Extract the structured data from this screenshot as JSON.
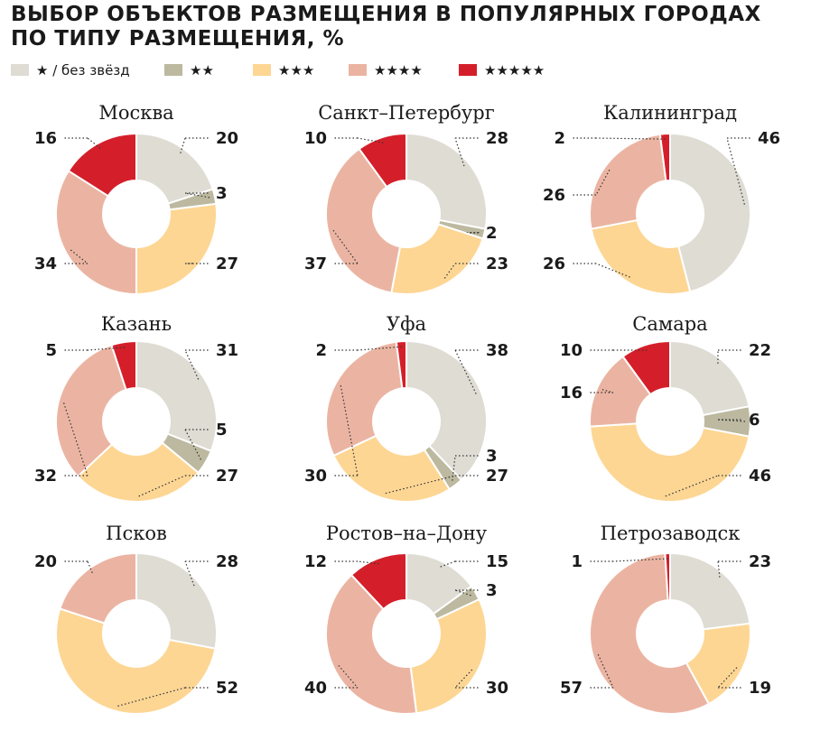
{
  "title_lines": [
    "ВЫБОР ОБЪЕКТОВ РАЗМЕЩЕНИЯ В ПОПУЛЯРНЫХ ГОРОДАХ",
    "ПО ТИПУ РАЗМЕЩЕНИЯ, %"
  ],
  "legend": [
    {
      "label": "★ / без звёзд",
      "color": "#dedcd3"
    },
    {
      "label": "★★",
      "color": "#bcb9a0"
    },
    {
      "label": "★★★",
      "color": "#fdd694"
    },
    {
      "label": "★★★★",
      "color": "#ebb4a2"
    },
    {
      "label": "★★★★★",
      "color": "#d41f2a"
    }
  ],
  "chart_data": [
    {
      "type": "pie",
      "variant": "donut",
      "title": "Москва",
      "categories": [
        "★ / без звёзд",
        "★★",
        "★★★",
        "★★★★",
        "★★★★★"
      ],
      "values": [
        20,
        3,
        27,
        34,
        16
      ]
    },
    {
      "type": "pie",
      "variant": "donut",
      "title": "Санкт–Петербург",
      "categories": [
        "★ / без звёзд",
        "★★",
        "★★★",
        "★★★★",
        "★★★★★"
      ],
      "values": [
        28,
        2,
        23,
        37,
        10
      ]
    },
    {
      "type": "pie",
      "variant": "donut",
      "title": "Калининград",
      "categories": [
        "★ / без звёзд",
        "★★★",
        "★★★★",
        "★★★★★"
      ],
      "values": [
        46,
        26,
        26,
        2
      ]
    },
    {
      "type": "pie",
      "variant": "donut",
      "title": "Казань",
      "categories": [
        "★ / без звёзд",
        "★★",
        "★★★",
        "★★★★",
        "★★★★★"
      ],
      "values": [
        31,
        5,
        27,
        32,
        5
      ]
    },
    {
      "type": "pie",
      "variant": "donut",
      "title": "Уфа",
      "categories": [
        "★ / без звёзд",
        "★★",
        "★★★",
        "★★★★",
        "★★★★★"
      ],
      "values": [
        38,
        3,
        27,
        30,
        2
      ]
    },
    {
      "type": "pie",
      "variant": "donut",
      "title": "Самара",
      "categories": [
        "★ / без звёзд",
        "★★",
        "★★★",
        "★★★★",
        "★★★★★"
      ],
      "values": [
        22,
        6,
        46,
        16,
        10
      ]
    },
    {
      "type": "pie",
      "variant": "donut",
      "title": "Псков",
      "categories": [
        "★ / без звёзд",
        "★★★",
        "★★★★"
      ],
      "values": [
        28,
        52,
        20
      ]
    },
    {
      "type": "pie",
      "variant": "donut",
      "title": "Ростов–на–Дону",
      "categories": [
        "★ / без звёзд",
        "★★",
        "★★★",
        "★★★★",
        "★★★★★"
      ],
      "values": [
        15,
        3,
        30,
        40,
        12
      ]
    },
    {
      "type": "pie",
      "variant": "donut",
      "title": "Петрозаводск",
      "categories": [
        "★ / без звёзд",
        "★★★",
        "★★★★",
        "★★★★★"
      ],
      "values": [
        23,
        19,
        57,
        1
      ]
    }
  ]
}
